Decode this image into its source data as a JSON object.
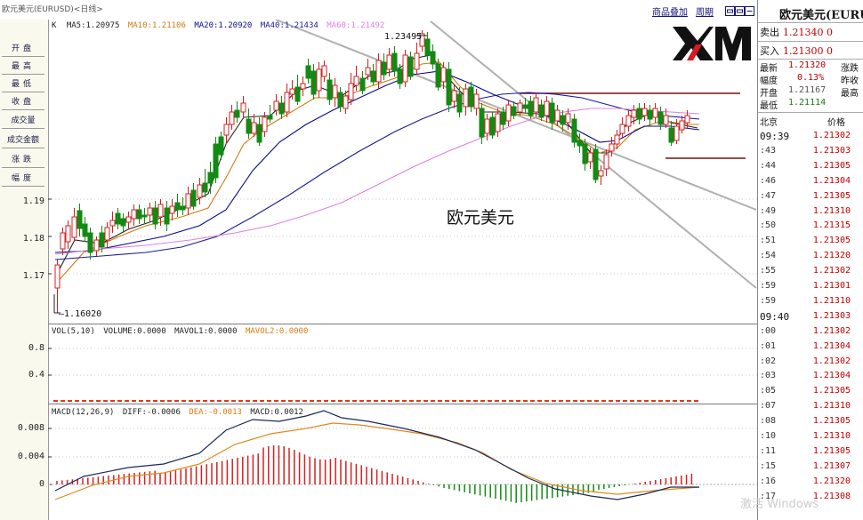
{
  "top": {
    "title": "欧元美元(EURUSD)<日线>",
    "links": [
      "商品叠加",
      "周期"
    ]
  },
  "left_buttons": [
    "开盘",
    "最高",
    "最低",
    "收盘",
    "成交量",
    "成交金额",
    "涨跌",
    "幅度"
  ],
  "main_chart": {
    "legend_k": "K",
    "legend": [
      {
        "label": "MA5:1.20975",
        "color": "#222222"
      },
      {
        "label": "MA10:1.21106",
        "color": "#d07a10"
      },
      {
        "label": "MA20:1.20920",
        "color": "#0a0a8a"
      },
      {
        "label": "MA40:1.21434",
        "color": "#1a1a9a"
      },
      {
        "label": "MA60:1.21492",
        "color": "#e080e0"
      }
    ],
    "yticks": [
      "1.19",
      "1.18",
      "1.17"
    ],
    "high_label": "1.23495",
    "low_label": "1.16020",
    "watermark": "欧元美元"
  },
  "volume_panel": {
    "legend_prefix": "VOL(5,10)",
    "legend": [
      {
        "label": "VOLUME:0.0000",
        "color": "#222222"
      },
      {
        "label": "MAVOL1:0.0000",
        "color": "#222222"
      },
      {
        "label": "MAVOL2:0.0000",
        "color": "#e07a10"
      }
    ],
    "yticks": [
      "0.8",
      "0.4"
    ]
  },
  "macd_panel": {
    "legend_prefix": "MACD(12,26,9)",
    "legend": [
      {
        "label": "DIFF:-0.0006",
        "color": "#222222"
      },
      {
        "label": "DEA:-0.0013",
        "color": "#e07a10"
      },
      {
        "label": "MACD:0.0012",
        "color": "#222222"
      }
    ],
    "yticks": [
      "0.008",
      "0.004",
      "0"
    ]
  },
  "quote": {
    "title": "欧元美元(EURUSD)",
    "sell_label": "卖出",
    "sell_value": "1.21340 0",
    "buy_label": "买入",
    "buy_value": "1.21300 0",
    "stats": [
      {
        "k": "最新",
        "v": "1.21320",
        "k2": "涨跌"
      },
      {
        "k": "幅度",
        "v": "0.13%",
        "k2": "昨收"
      },
      {
        "k": "开盘",
        "v": "1.21167",
        "k2": "最高"
      },
      {
        "k": "最低",
        "v": "1.21114",
        "k2": ""
      }
    ],
    "city": "北京",
    "price_header": "价格",
    "ticks": [
      {
        "t": "09:39",
        "p": "1.21302",
        "big": true
      },
      {
        "t": ":43",
        "p": "1.21303"
      },
      {
        "t": ":44",
        "p": "1.21305"
      },
      {
        "t": ":46",
        "p": "1.21304"
      },
      {
        "t": ":47",
        "p": "1.21305"
      },
      {
        "t": ":49",
        "p": "1.21310"
      },
      {
        "t": ":50",
        "p": "1.21315"
      },
      {
        "t": ":51",
        "p": "1.21305"
      },
      {
        "t": ":54",
        "p": "1.21320"
      },
      {
        "t": ":55",
        "p": "1.21302"
      },
      {
        "t": ":59",
        "p": "1.21301"
      },
      {
        "t": ":59",
        "p": "1.21310"
      },
      {
        "t": "09:40",
        "p": "1.21303",
        "big": true
      },
      {
        "t": ":00",
        "p": "1.21302"
      },
      {
        "t": ":01",
        "p": "1.21304"
      },
      {
        "t": ":02",
        "p": "1.21302"
      },
      {
        "t": ":03",
        "p": "1.21304"
      },
      {
        "t": ":05",
        "p": "1.21305"
      },
      {
        "t": ":07",
        "p": "1.21310"
      },
      {
        "t": ":08",
        "p": "1.21305"
      },
      {
        "t": ":10",
        "p": "1.21310"
      },
      {
        "t": ":11",
        "p": "1.21305"
      },
      {
        "t": ":15",
        "p": "1.21307"
      },
      {
        "t": ":16",
        "p": "1.21320"
      },
      {
        "t": ":17",
        "p": "1.21308"
      }
    ]
  },
  "brand": {
    "logo": "XM"
  },
  "os_watermark": "激活 Windows"
}
